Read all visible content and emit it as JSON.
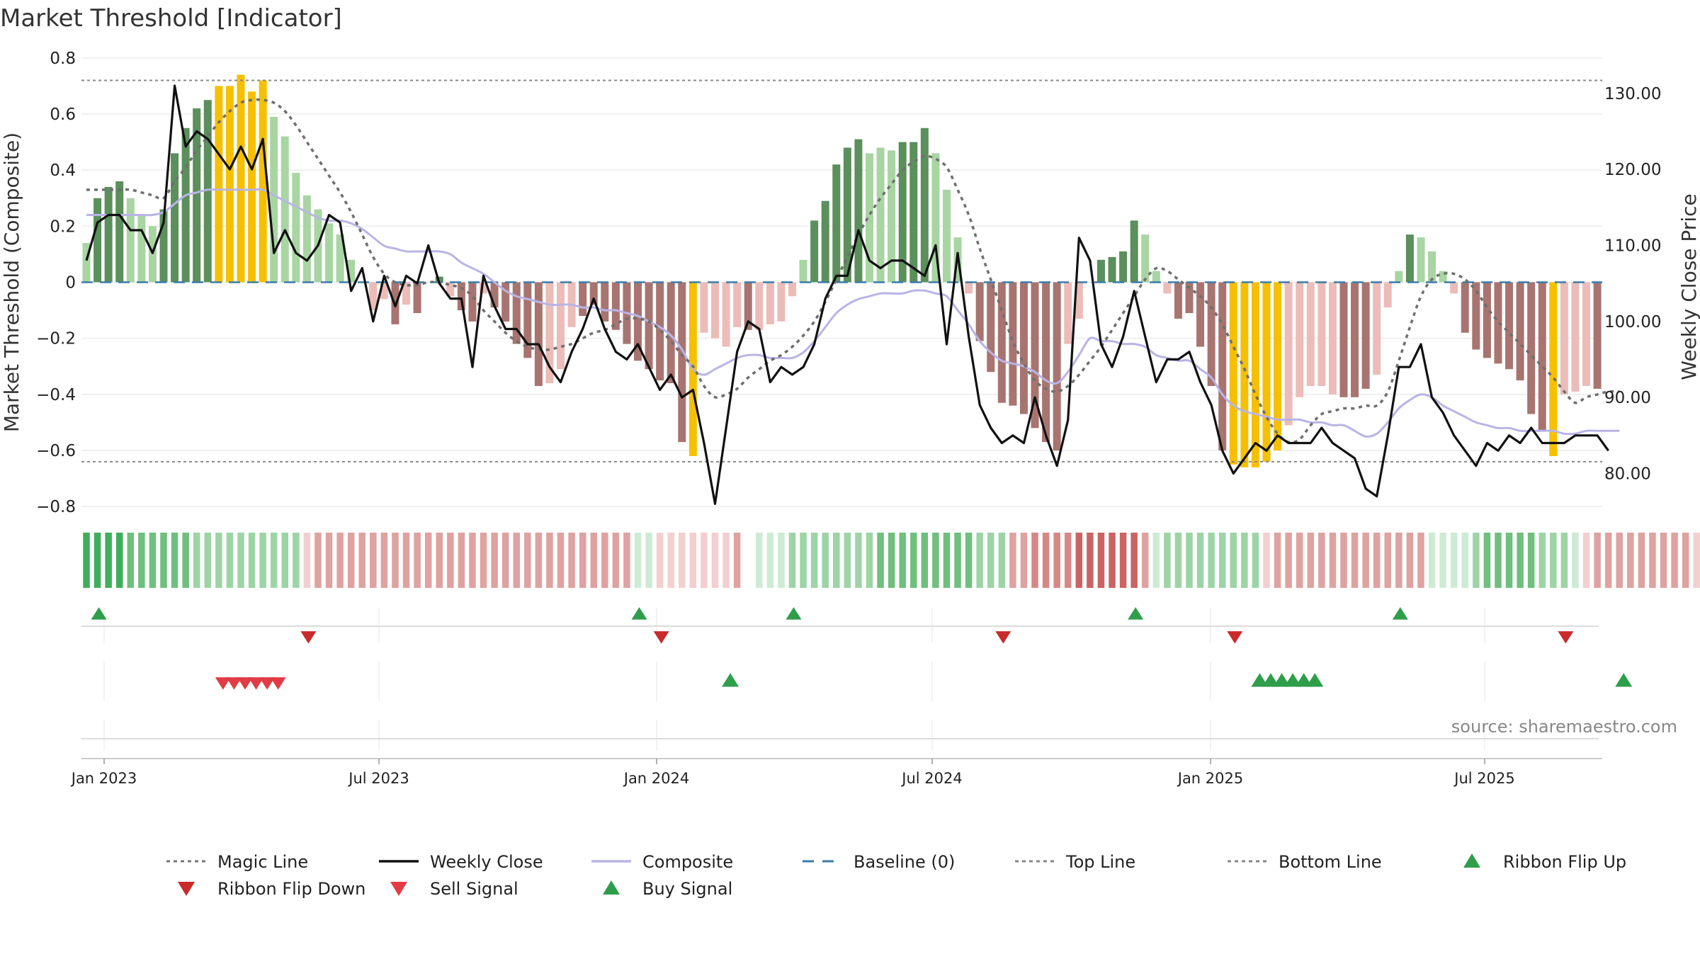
{
  "chart_data": {
    "type": "line",
    "title": "Market Threshold [Indicator]",
    "ylabel": "Market Threshold (Composite)",
    "y2label": "Weekly Close Price",
    "source": "source: sharemaestro.com",
    "ylim": [
      -0.85,
      0.85
    ],
    "y2lim": [
      73.8,
      136.5
    ],
    "y_ticks": [
      "0.8",
      "0.6",
      "0.4",
      "0.2",
      "0",
      "−0.2",
      "−0.4",
      "−0.6",
      "−0.8"
    ],
    "y2_ticks": [
      "130.00",
      "120.00",
      "110.00",
      "100.00",
      "90.00",
      "80.00"
    ],
    "x_ticks": [
      "Jan 2023",
      "Jul 2023",
      "Jan 2024",
      "Jul 2024",
      "Jan 2025",
      "Jul 2025"
    ],
    "x_start": "2022-12-19",
    "week_step": 1,
    "top_line": 0.72,
    "bottom_line": -0.64,
    "bars": [
      0.14,
      0.3,
      0.34,
      0.36,
      0.3,
      0.24,
      0.2,
      0.26,
      0.46,
      0.55,
      0.62,
      0.65,
      0.7,
      0.7,
      0.74,
      0.68,
      0.72,
      0.59,
      0.52,
      0.39,
      0.31,
      0.26,
      0.21,
      0.17,
      0.08,
      0.0,
      -0.1,
      -0.06,
      -0.15,
      -0.08,
      -0.11,
      0.0,
      0.02,
      -0.05,
      -0.1,
      -0.14,
      -0.04,
      -0.09,
      -0.14,
      -0.22,
      -0.27,
      -0.37,
      -0.36,
      -0.31,
      -0.16,
      -0.12,
      -0.08,
      -0.14,
      -0.17,
      -0.22,
      -0.28,
      -0.31,
      -0.35,
      -0.36,
      -0.57,
      -0.62,
      -0.18,
      -0.2,
      -0.23,
      -0.16,
      -0.17,
      -0.17,
      -0.15,
      -0.14,
      -0.05,
      0.08,
      0.22,
      0.29,
      0.42,
      0.48,
      0.51,
      0.46,
      0.48,
      0.47,
      0.5,
      0.5,
      0.55,
      0.46,
      0.33,
      0.16,
      -0.04,
      -0.21,
      -0.32,
      -0.43,
      -0.44,
      -0.47,
      -0.52,
      -0.57,
      -0.6,
      -0.22,
      -0.13,
      0.0,
      0.08,
      0.09,
      0.11,
      0.22,
      0.17,
      0.04,
      -0.04,
      -0.13,
      -0.11,
      -0.23,
      -0.37,
      -0.6,
      -0.65,
      -0.66,
      -0.66,
      -0.64,
      -0.6,
      -0.51,
      -0.41,
      -0.37,
      -0.37,
      -0.4,
      -0.41,
      -0.41,
      -0.38,
      -0.33,
      -0.09,
      0.04,
      0.17,
      0.16,
      0.11,
      0.04,
      -0.04,
      -0.18,
      -0.24,
      -0.27,
      -0.29,
      -0.31,
      -0.35,
      -0.47,
      -0.53,
      -0.62,
      -0.4,
      -0.39,
      -0.37,
      -0.38
    ],
    "bar_colors": [
      "lg",
      "dg",
      "dg",
      "dg",
      "lg",
      "lg",
      "lg",
      "dg",
      "dg",
      "dg",
      "dg",
      "dg",
      "y",
      "y",
      "y",
      "y",
      "y",
      "lg",
      "lg",
      "lg",
      "lg",
      "lg",
      "lg",
      "lg",
      "lg",
      "lg",
      "lr",
      "lr",
      "dr",
      "lr",
      "dr",
      "lg",
      "dg",
      "lr",
      "dr",
      "dr",
      "lr",
      "dr",
      "dr",
      "dr",
      "dr",
      "dr",
      "lr",
      "lr",
      "lr",
      "dr",
      "dr",
      "dr",
      "dr",
      "dr",
      "dr",
      "dr",
      "dr",
      "dr",
      "dr",
      "y",
      "lr",
      "lr",
      "lr",
      "lr",
      "dr",
      "lr",
      "lr",
      "lr",
      "lr",
      "lg",
      "dg",
      "dg",
      "dg",
      "dg",
      "dg",
      "lg",
      "lg",
      "lg",
      "dg",
      "dg",
      "dg",
      "lg",
      "lg",
      "lg",
      "lr",
      "dr",
      "dr",
      "dr",
      "dr",
      "dr",
      "dr",
      "dr",
      "dr",
      "lr",
      "lr",
      "lr",
      "dg",
      "dg",
      "dg",
      "dg",
      "lg",
      "lg",
      "lr",
      "dr",
      "dr",
      "dr",
      "dr",
      "dr",
      "y",
      "y",
      "y",
      "y",
      "y",
      "lr",
      "lr",
      "lr",
      "lr",
      "lr",
      "dr",
      "dr",
      "dr",
      "lr",
      "lr",
      "lg",
      "dg",
      "lg",
      "lg",
      "lg",
      "lr",
      "dr",
      "dr",
      "dr",
      "dr",
      "dr",
      "dr",
      "dr",
      "dr",
      "y",
      "lr",
      "lr",
      "lr",
      "dr"
    ],
    "composite": [
      0.24,
      0.24,
      0.24,
      0.24,
      0.24,
      0.24,
      0.24,
      0.25,
      0.28,
      0.31,
      0.32,
      0.33,
      0.33,
      0.33,
      0.33,
      0.33,
      0.33,
      0.31,
      0.29,
      0.27,
      0.25,
      0.23,
      0.22,
      0.22,
      0.21,
      0.19,
      0.16,
      0.13,
      0.12,
      0.11,
      0.11,
      0.11,
      0.11,
      0.1,
      0.07,
      0.05,
      0.03,
      0.0,
      -0.03,
      -0.05,
      -0.06,
      -0.07,
      -0.08,
      -0.08,
      -0.08,
      -0.09,
      -0.09,
      -0.1,
      -0.1,
      -0.11,
      -0.12,
      -0.14,
      -0.16,
      -0.19,
      -0.24,
      -0.31,
      -0.33,
      -0.31,
      -0.29,
      -0.27,
      -0.26,
      -0.26,
      -0.27,
      -0.27,
      -0.27,
      -0.25,
      -0.21,
      -0.16,
      -0.11,
      -0.08,
      -0.06,
      -0.05,
      -0.04,
      -0.04,
      -0.04,
      -0.03,
      -0.03,
      -0.04,
      -0.05,
      -0.1,
      -0.15,
      -0.21,
      -0.25,
      -0.28,
      -0.29,
      -0.3,
      -0.32,
      -0.35,
      -0.36,
      -0.32,
      -0.26,
      -0.2,
      -0.21,
      -0.21,
      -0.22,
      -0.22,
      -0.23,
      -0.26,
      -0.27,
      -0.28,
      -0.28,
      -0.31,
      -0.34,
      -0.4,
      -0.44,
      -0.46,
      -0.47,
      -0.48,
      -0.49,
      -0.49,
      -0.49,
      -0.5,
      -0.5,
      -0.51,
      -0.51,
      -0.53,
      -0.55,
      -0.54,
      -0.5,
      -0.45,
      -0.42,
      -0.4,
      -0.41,
      -0.44,
      -0.46,
      -0.48,
      -0.5,
      -0.51,
      -0.52,
      -0.52,
      -0.53,
      -0.53,
      -0.53,
      -0.53,
      -0.54,
      -0.54,
      -0.53,
      -0.53,
      -0.53,
      -0.53
    ],
    "magic": [
      0.33,
      0.33,
      0.33,
      0.33,
      0.33,
      0.32,
      0.31,
      0.3,
      0.36,
      0.41,
      0.47,
      0.52,
      0.57,
      0.61,
      0.64,
      0.65,
      0.65,
      0.64,
      0.61,
      0.56,
      0.5,
      0.44,
      0.38,
      0.32,
      0.25,
      0.17,
      0.09,
      0.03,
      0.0,
      -0.01,
      -0.01,
      0.0,
      0.0,
      -0.01,
      -0.02,
      -0.05,
      -0.1,
      -0.14,
      -0.18,
      -0.21,
      -0.23,
      -0.24,
      -0.24,
      -0.23,
      -0.22,
      -0.2,
      -0.18,
      -0.17,
      -0.15,
      -0.13,
      -0.13,
      -0.14,
      -0.17,
      -0.21,
      -0.26,
      -0.3,
      -0.37,
      -0.41,
      -0.4,
      -0.38,
      -0.34,
      -0.31,
      -0.28,
      -0.26,
      -0.23,
      -0.19,
      -0.14,
      -0.07,
      0.01,
      0.09,
      0.17,
      0.24,
      0.3,
      0.35,
      0.4,
      0.43,
      0.45,
      0.44,
      0.41,
      0.33,
      0.24,
      0.12,
      0.01,
      -0.1,
      -0.21,
      -0.29,
      -0.35,
      -0.38,
      -0.39,
      -0.37,
      -0.33,
      -0.28,
      -0.23,
      -0.17,
      -0.11,
      -0.05,
      0.01,
      0.05,
      0.04,
      0.01,
      -0.02,
      -0.05,
      -0.09,
      -0.15,
      -0.23,
      -0.31,
      -0.4,
      -0.48,
      -0.54,
      -0.57,
      -0.56,
      -0.51,
      -0.47,
      -0.46,
      -0.45,
      -0.45,
      -0.44,
      -0.44,
      -0.39,
      -0.28,
      -0.16,
      -0.05,
      0.01,
      0.03,
      0.03,
      0.01,
      -0.03,
      -0.09,
      -0.14,
      -0.18,
      -0.22,
      -0.26,
      -0.3,
      -0.34,
      -0.39,
      -0.43,
      -0.41,
      -0.4,
      -0.39,
      -0.39
    ],
    "weekly_close": [
      108,
      113,
      114,
      114,
      112,
      112,
      109,
      113,
      131,
      123,
      125,
      124,
      122,
      120,
      123,
      120,
      124,
      109,
      112,
      109,
      108,
      110,
      114,
      113,
      104,
      107,
      100,
      106,
      102,
      106,
      105,
      110,
      105,
      103,
      103,
      94,
      106,
      102,
      99,
      99,
      97,
      97,
      94,
      92,
      96,
      99,
      103,
      99,
      96,
      95,
      97,
      94,
      91,
      93,
      90,
      91,
      84,
      76,
      86,
      96,
      100,
      99,
      92,
      94,
      93,
      94,
      97,
      103,
      106,
      106,
      112,
      108,
      107,
      108,
      108,
      107,
      106,
      110,
      97,
      109,
      98,
      89,
      86,
      84,
      85,
      84,
      90,
      85,
      81,
      87,
      111,
      108,
      97,
      94,
      98,
      104,
      98,
      92,
      95,
      95,
      96,
      92,
      89,
      83,
      80,
      82,
      84,
      83,
      85,
      84,
      84,
      84,
      86,
      84,
      83,
      82,
      78,
      77,
      85,
      94,
      94,
      97,
      90,
      88,
      85,
      83,
      81,
      84,
      83,
      85,
      84,
      86,
      84,
      84,
      84,
      85,
      85,
      85,
      83
    ],
    "ribbon": [
      "g3",
      "g3",
      "g3",
      "g3",
      "g2",
      "g2",
      "g2",
      "g2",
      "g2",
      "g2",
      "g1",
      "g1",
      "g1",
      "g1",
      "g1",
      "g1",
      "g1",
      "g1",
      "g1",
      "g1",
      "r0",
      "r1",
      "r1",
      "r1",
      "r1",
      "r1",
      "r1",
      "r1",
      "r1",
      "r1",
      "r1",
      "r1",
      "r1",
      "r1",
      "r1",
      "r1",
      "r1",
      "r1",
      "r1",
      "r1",
      "r1",
      "r1",
      "r1",
      "r1",
      "r1",
      "r1",
      "r1",
      "r1",
      "r1",
      "r1",
      "g0",
      "g0",
      "r0",
      "r0",
      "r0",
      "r0",
      "r0",
      "r0",
      "r0",
      "r1",
      "gap",
      "g0",
      "g0",
      "g0",
      "g1",
      "g1",
      "g1",
      "g1",
      "g1",
      "g1",
      "g1",
      "g1",
      "g2",
      "g2",
      "g2",
      "g2",
      "g2",
      "g2",
      "g2",
      "g2",
      "g2",
      "g1",
      "g1",
      "g1",
      "r1",
      "r1",
      "r2",
      "r2",
      "r2",
      "r2",
      "r3",
      "r3",
      "r3",
      "r3",
      "r3",
      "r3",
      "r1",
      "g0",
      "g1",
      "g1",
      "g1",
      "g1",
      "g1",
      "g1",
      "g1",
      "g1",
      "g1",
      "r0",
      "r1",
      "r1",
      "r1",
      "r1",
      "r1",
      "r1",
      "r1",
      "r1",
      "r1",
      "r1",
      "r1",
      "r1",
      "r1",
      "r1",
      "g0",
      "g0",
      "g0",
      "g0",
      "g1",
      "g2",
      "g2",
      "g2",
      "g2",
      "g2",
      "g1",
      "g1",
      "g1",
      "g0",
      "r0",
      "r1",
      "r1",
      "r1",
      "r1",
      "r1",
      "r1",
      "r1",
      "r1",
      "r1",
      "r0",
      "r0",
      "r0"
    ],
    "ribbon_flip_up_idx": [
      1,
      50,
      64,
      95,
      119
    ],
    "ribbon_flip_down_idx": [
      20,
      52,
      83,
      104,
      134
    ],
    "sell_signal_idx": [
      12,
      13,
      14,
      15,
      16,
      17
    ],
    "buy_signal_idx": [
      58,
      106,
      107,
      108,
      109,
      110,
      111,
      139
    ],
    "legend": [
      {
        "label": "Magic Line",
        "kind": "dotted",
        "color": "#777777"
      },
      {
        "label": "Weekly Close",
        "kind": "line",
        "color": "#111111"
      },
      {
        "label": "Composite",
        "kind": "line",
        "color": "#b9b4e6"
      },
      {
        "label": "Baseline (0)",
        "kind": "dashed",
        "color": "#3b7ca8"
      },
      {
        "label": "Top Line",
        "kind": "dotted",
        "color": "#888888"
      },
      {
        "label": "Bottom Line",
        "kind": "dotted",
        "color": "#888888"
      },
      {
        "label": "Ribbon Flip Up",
        "kind": "tri-up",
        "color": "#2e9e4a"
      },
      {
        "label": "Ribbon Flip Down",
        "kind": "tri-down",
        "color": "#c92a2a"
      },
      {
        "label": "Sell Signal",
        "kind": "tri-down",
        "color": "#e23b45"
      },
      {
        "label": "Buy Signal",
        "kind": "tri-up",
        "color": "#2e9e4a"
      }
    ],
    "colors": {
      "dark_green": "#5b8f5b",
      "light_green": "#a8d5a2",
      "yellow": "#f6c000",
      "dark_red": "#a87470",
      "light_red": "#ecbcb8",
      "ribbon_g3": "#3fae5b",
      "ribbon_g2": "#6fbf7e",
      "ribbon_g1": "#9dd4a6",
      "ribbon_g0": "#cdebd3",
      "ribbon_r0": "#f2d0cf",
      "ribbon_r1": "#dea2a0",
      "ribbon_r2": "#d58887",
      "ribbon_r3": "#c96462"
    }
  }
}
